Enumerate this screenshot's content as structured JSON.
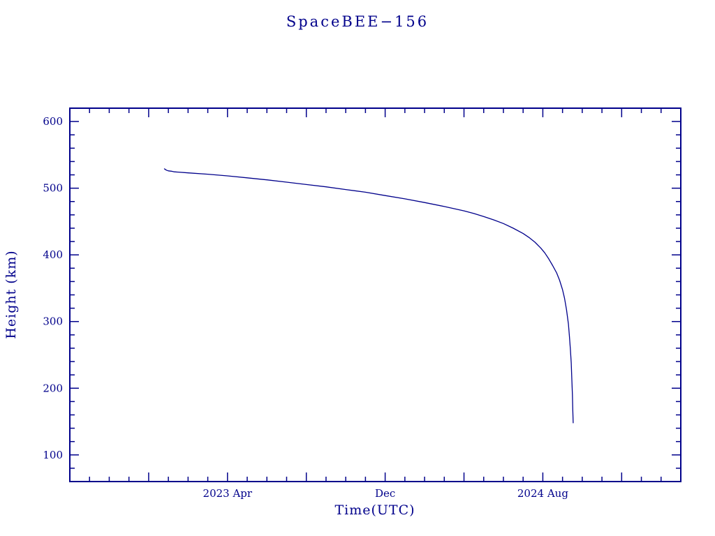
{
  "colors": {
    "accent": "#00008b",
    "background": "#ffffff"
  },
  "chart_data": {
    "type": "line",
    "title": "SpaceBEE−156",
    "xlabel": "Time(UTC)",
    "ylabel": "Height (km)",
    "x_unit": "months since 2022 Aug",
    "xlim": [
      0,
      31
    ],
    "ylim": [
      60,
      620
    ],
    "x_minor_tick_step": 1,
    "x_major_tick_step": 4,
    "y_minor_tick_step": 20,
    "y_major_ticks": [
      100,
      200,
      300,
      400,
      500,
      600
    ],
    "x_tick_labels": [
      {
        "pos": 8,
        "label": "2023 Apr"
      },
      {
        "pos": 16,
        "label": "Dec"
      },
      {
        "pos": 24,
        "label": "2024 Aug"
      }
    ],
    "grid": false,
    "legend": "none",
    "line_color": "#00008b",
    "series": [
      {
        "name": "Height (km)",
        "points": [
          [
            4.8,
            529
          ],
          [
            4.9,
            527
          ],
          [
            5.0,
            526
          ],
          [
            5.15,
            525.5
          ],
          [
            5.3,
            524.5
          ],
          [
            6,
            523
          ],
          [
            7,
            521
          ],
          [
            8,
            518.5
          ],
          [
            9,
            515.5
          ],
          [
            10,
            512.5
          ],
          [
            11,
            509
          ],
          [
            12,
            505.5
          ],
          [
            13,
            502
          ],
          [
            14,
            498
          ],
          [
            15,
            494
          ],
          [
            16,
            489
          ],
          [
            17,
            484
          ],
          [
            18,
            478.5
          ],
          [
            19,
            472.5
          ],
          [
            20,
            466
          ],
          [
            20.5,
            462
          ],
          [
            21,
            457.5
          ],
          [
            21.5,
            452.5
          ],
          [
            22,
            447
          ],
          [
            22.5,
            440
          ],
          [
            23,
            432
          ],
          [
            23.3,
            426
          ],
          [
            23.6,
            419
          ],
          [
            23.9,
            410
          ],
          [
            24.1,
            403
          ],
          [
            24.3,
            394
          ],
          [
            24.5,
            384
          ],
          [
            24.7,
            373
          ],
          [
            24.85,
            362
          ],
          [
            25.0,
            348
          ],
          [
            25.1,
            335
          ],
          [
            25.2,
            318
          ],
          [
            25.3,
            296
          ],
          [
            25.35,
            278
          ],
          [
            25.4,
            258
          ],
          [
            25.44,
            238
          ],
          [
            25.47,
            215
          ],
          [
            25.5,
            190
          ],
          [
            25.52,
            168
          ],
          [
            25.54,
            148
          ]
        ]
      }
    ]
  }
}
